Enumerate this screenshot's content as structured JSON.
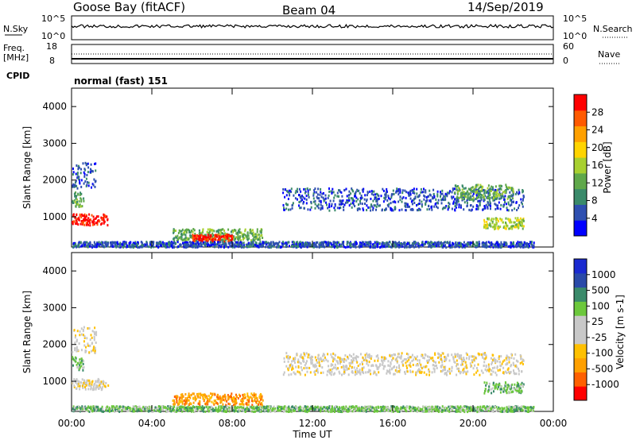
{
  "header": {
    "station": "Goose Bay (fitACF)",
    "beam": "Beam 04",
    "date": "14/Sep/2019"
  },
  "panels_top": {
    "nsky_label": "N.Sky",
    "nsky_tick_hi": "10^5",
    "nsky_tick_lo": "10^0",
    "nsearch_label": "N.Search",
    "nsearch_tick_hi": "10^5",
    "nsearch_tick_lo": "10^0",
    "freq_label_1": "Freq.",
    "freq_label_2": "[MHz]",
    "freq_tick_hi": "18",
    "freq_tick_lo": "8",
    "nave_label": "Nave",
    "nave_tick_hi": "60",
    "nave_tick_lo": "0",
    "cpid_label": "CPID",
    "cpid_text": "normal (fast) 151"
  },
  "axes": {
    "ylabel": "Slant Range [km]",
    "xlabel": "Time UT"
  },
  "colors": {
    "power_scale": [
      "#0000ff",
      "#2e4fb0",
      "#3a8a6a",
      "#5fa84a",
      "#a8d030",
      "#ffd400",
      "#ffa000",
      "#ff5a00",
      "#ff0000"
    ],
    "velocity_scale": [
      "#ff0000",
      "#ff6000",
      "#ffa000",
      "#ffc000",
      "#c8c8c8",
      "#c8c8c8",
      "#6cc83c",
      "#3a8a6a",
      "#2a4aa8",
      "#1a2ad0"
    ],
    "ground_scatter": "#b0b0b0",
    "black": "#000000"
  },
  "chart_data": [
    {
      "type": "heatmap",
      "name": "power",
      "colorbar_label": "Power [dB]",
      "colorbar_ticks": [
        "4",
        "8",
        "12",
        "16",
        "20",
        "24",
        "28"
      ],
      "xlim_hours": [
        0,
        24
      ],
      "x_tick_labels": [
        "00:00",
        "04:00",
        "08:00",
        "12:00",
        "16:00",
        "20:00",
        "00:00"
      ],
      "ylim_km": [
        180,
        4500
      ],
      "y_tick_labels": [
        "1000",
        "2000",
        "3000",
        "4000"
      ],
      "scatter_regions": [
        {
          "t0": 0.0,
          "t1": 1.8,
          "r0": 800,
          "r1": 1100,
          "level": 8
        },
        {
          "t0": 0.0,
          "t1": 0.6,
          "r0": 1300,
          "r1": 1700,
          "level": 3
        },
        {
          "t0": 0.0,
          "t1": 1.2,
          "r0": 1800,
          "r1": 2500,
          "level": 1
        },
        {
          "t0": 5.0,
          "t1": 9.5,
          "r0": 380,
          "r1": 700,
          "level": 3
        },
        {
          "t0": 6.0,
          "t1": 8.0,
          "r0": 350,
          "r1": 550,
          "level": 8
        },
        {
          "t0": 10.5,
          "t1": 22.5,
          "r0": 1200,
          "r1": 1800,
          "level": 1
        },
        {
          "t0": 19.0,
          "t1": 22.0,
          "r0": 1500,
          "r1": 1900,
          "level": 3
        },
        {
          "t0": 20.5,
          "t1": 22.5,
          "r0": 700,
          "r1": 1000,
          "level": 4
        },
        {
          "t0": 0.0,
          "t1": 23.0,
          "r0": 200,
          "r1": 350,
          "level": 1
        }
      ]
    },
    {
      "type": "heatmap",
      "name": "velocity",
      "colorbar_label": "Velocity [m s-1]",
      "colorbar_ticks": [
        "-1000",
        "-500",
        "-100",
        "-25",
        "25",
        "100",
        "500",
        "1000"
      ],
      "xlim_hours": [
        0,
        24
      ],
      "x_tick_labels": [
        "00:00",
        "04:00",
        "08:00",
        "12:00",
        "16:00",
        "20:00",
        "00:00"
      ],
      "ylim_km": [
        180,
        4500
      ],
      "y_tick_labels": [
        "1000",
        "2000",
        "3000",
        "4000"
      ],
      "scatter_regions": [
        {
          "t0": 0.0,
          "t1": 1.8,
          "r0": 800,
          "r1": 1100,
          "level": 4
        },
        {
          "t0": 0.0,
          "t1": 0.6,
          "r0": 1300,
          "r1": 1700,
          "level": 6
        },
        {
          "t0": 0.0,
          "t1": 1.2,
          "r0": 1800,
          "r1": 2500,
          "level": 4
        },
        {
          "t0": 5.0,
          "t1": 9.5,
          "r0": 380,
          "r1": 700,
          "level": 2
        },
        {
          "t0": 10.5,
          "t1": 22.5,
          "r0": 1200,
          "r1": 1800,
          "level": 4
        },
        {
          "t0": 20.5,
          "t1": 22.5,
          "r0": 700,
          "r1": 1000,
          "level": 6
        },
        {
          "t0": 0.0,
          "t1": 23.0,
          "r0": 200,
          "r1": 350,
          "level": 6
        }
      ]
    }
  ]
}
